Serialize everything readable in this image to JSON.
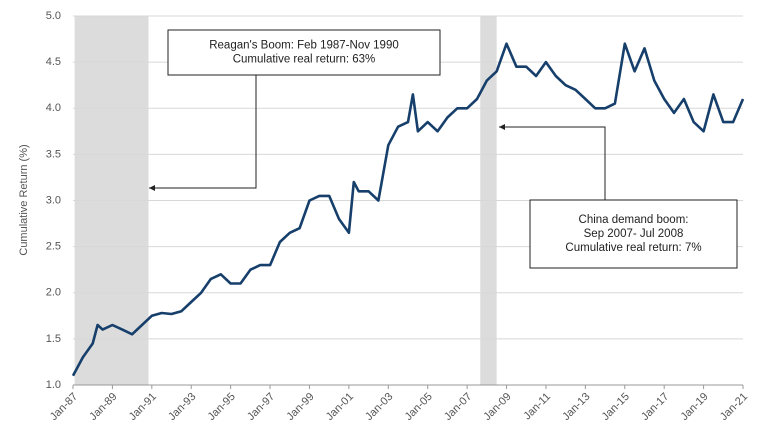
{
  "chart_data": {
    "type": "line",
    "ylabel": "Cumulative Return (%)",
    "x": [
      "1987-01",
      "1987-07",
      "1988-01",
      "1988-04",
      "1988-07",
      "1989-01",
      "1989-07",
      "1990-01",
      "1990-07",
      "1991-01",
      "1991-07",
      "1992-01",
      "1992-07",
      "1993-01",
      "1993-07",
      "1994-01",
      "1994-07",
      "1995-01",
      "1995-07",
      "1996-01",
      "1996-07",
      "1997-01",
      "1997-07",
      "1998-01",
      "1998-07",
      "1999-01",
      "1999-07",
      "2000-01",
      "2000-07",
      "2001-01",
      "2001-04",
      "2001-07",
      "2002-01",
      "2002-07",
      "2003-01",
      "2003-07",
      "2004-01",
      "2004-04",
      "2004-07",
      "2005-01",
      "2005-07",
      "2006-01",
      "2006-07",
      "2007-01",
      "2007-07",
      "2008-01",
      "2008-07",
      "2009-01",
      "2009-07",
      "2010-01",
      "2010-07",
      "2011-01",
      "2011-07",
      "2012-01",
      "2012-07",
      "2013-01",
      "2013-07",
      "2014-01",
      "2014-07",
      "2015-01",
      "2015-07",
      "2016-01",
      "2016-07",
      "2017-01",
      "2017-07",
      "2018-01",
      "2018-07",
      "2019-01",
      "2019-07",
      "2020-01",
      "2020-07",
      "2021-01"
    ],
    "series": [
      {
        "name": "Cumulative real return",
        "color": "#173f6b",
        "values": [
          1.1,
          1.3,
          1.45,
          1.65,
          1.6,
          1.65,
          1.6,
          1.55,
          1.65,
          1.75,
          1.78,
          1.77,
          1.8,
          1.9,
          2.0,
          2.15,
          2.2,
          2.1,
          2.1,
          2.25,
          2.3,
          2.3,
          2.55,
          2.65,
          2.7,
          3.0,
          3.05,
          3.05,
          2.8,
          2.65,
          3.2,
          3.1,
          3.1,
          3.0,
          3.6,
          3.8,
          3.85,
          4.15,
          3.75,
          3.85,
          3.75,
          3.9,
          4.0,
          4.0,
          4.1,
          4.3,
          4.4,
          4.7,
          4.45,
          4.45,
          4.35,
          4.5,
          4.35,
          4.25,
          4.2,
          4.1,
          4.0,
          4.0,
          4.05,
          4.7,
          4.4,
          4.65,
          4.3,
          4.1,
          3.95,
          4.1,
          3.85,
          3.75,
          4.15,
          3.85,
          3.85,
          4.1
        ]
      }
    ],
    "xlim": [
      "1987-01",
      "2021-01"
    ],
    "xticks": [
      {
        "value": "1987-01",
        "label": "Jan-87"
      },
      {
        "value": "1989-01",
        "label": "Jan-89"
      },
      {
        "value": "1991-01",
        "label": "Jan-91"
      },
      {
        "value": "1993-01",
        "label": "Jan-93"
      },
      {
        "value": "1995-01",
        "label": "Jan-95"
      },
      {
        "value": "1997-01",
        "label": "Jan-97"
      },
      {
        "value": "1999-01",
        "label": "Jan-99"
      },
      {
        "value": "2001-01",
        "label": "Jan-01"
      },
      {
        "value": "2003-01",
        "label": "Jan-03"
      },
      {
        "value": "2005-01",
        "label": "Jan-05"
      },
      {
        "value": "2007-01",
        "label": "Jan-07"
      },
      {
        "value": "2009-01",
        "label": "Jan-09"
      },
      {
        "value": "2011-01",
        "label": "Jan-11"
      },
      {
        "value": "2013-01",
        "label": "Jan-13"
      },
      {
        "value": "2015-01",
        "label": "Jan-15"
      },
      {
        "value": "2017-01",
        "label": "Jan-17"
      },
      {
        "value": "2019-01",
        "label": "Jan-19"
      },
      {
        "value": "2021-01",
        "label": "Jan-21"
      }
    ],
    "ylim": [
      1.0,
      5.0
    ],
    "yticks": [
      {
        "value": 1,
        "label": "1.0"
      },
      {
        "value": 1.5,
        "label": "1.5"
      },
      {
        "value": 2,
        "label": "2.0"
      },
      {
        "value": 2.5,
        "label": "2.5"
      },
      {
        "value": 3,
        "label": "3.0"
      },
      {
        "value": 3.5,
        "label": "3.5"
      },
      {
        "value": 4,
        "label": "4.0"
      },
      {
        "value": 4.5,
        "label": "4.5"
      },
      {
        "value": 5,
        "label": "5.0"
      }
    ],
    "grid": true,
    "shaded_regions": [
      {
        "start": "1987-02",
        "end": "1990-11"
      },
      {
        "start": "2007-09",
        "end": "2008-07"
      }
    ],
    "annotations": [
      {
        "lines": [
          "Reagan's Boom: Feb 1987-Nov 1990",
          "Cumulative real return: 63%"
        ]
      },
      {
        "lines": [
          "China demand boom:",
          "Sep 2007- Jul 2008",
          "Cumulative real return: 7%"
        ]
      }
    ]
  }
}
